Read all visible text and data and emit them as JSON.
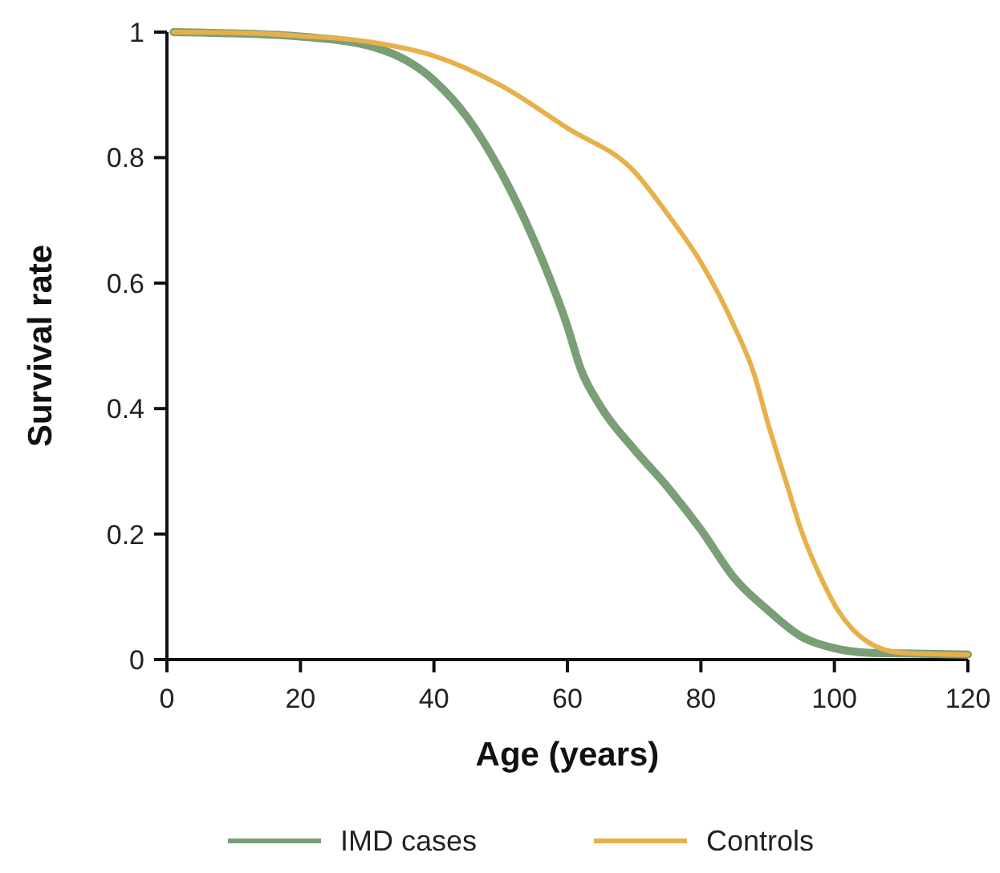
{
  "chart_data": {
    "type": "line",
    "xlabel": "Age (years)",
    "ylabel": "Survival rate",
    "xlim": [
      0,
      120
    ],
    "ylim": [
      0,
      1
    ],
    "xticks": [
      0,
      20,
      40,
      60,
      80,
      100,
      120
    ],
    "yticks": [
      0,
      0.2,
      0.4,
      0.6,
      0.8,
      1
    ],
    "grid": false,
    "legend": "bottom",
    "marker": "none",
    "line_style": "solid",
    "series": [
      {
        "name": "IMD cases",
        "color": "#7a9e76",
        "x": [
          1,
          10,
          20,
          30,
          40,
          45,
          50,
          55,
          60,
          62,
          65,
          70,
          75,
          80,
          85,
          90,
          95,
          100,
          105,
          110,
          120
        ],
        "values": [
          1,
          0.998,
          0.993,
          0.979,
          0.923,
          0.864,
          0.778,
          0.668,
          0.531,
          0.463,
          0.403,
          0.335,
          0.275,
          0.207,
          0.13,
          0.079,
          0.037,
          0.018,
          0.011,
          0.01,
          0.008
        ]
      },
      {
        "name": "Controls",
        "color": "#e8b04a",
        "x": [
          1,
          10,
          20,
          30,
          40,
          50,
          60,
          70,
          75,
          80,
          85,
          88,
          90,
          93,
          95,
          98,
          100,
          105,
          110,
          120
        ],
        "values": [
          1,
          0.999,
          0.994,
          0.985,
          0.962,
          0.915,
          0.847,
          0.778,
          0.71,
          0.633,
          0.531,
          0.454,
          0.378,
          0.275,
          0.207,
          0.13,
          0.088,
          0.028,
          0.011,
          0.008
        ]
      }
    ]
  }
}
